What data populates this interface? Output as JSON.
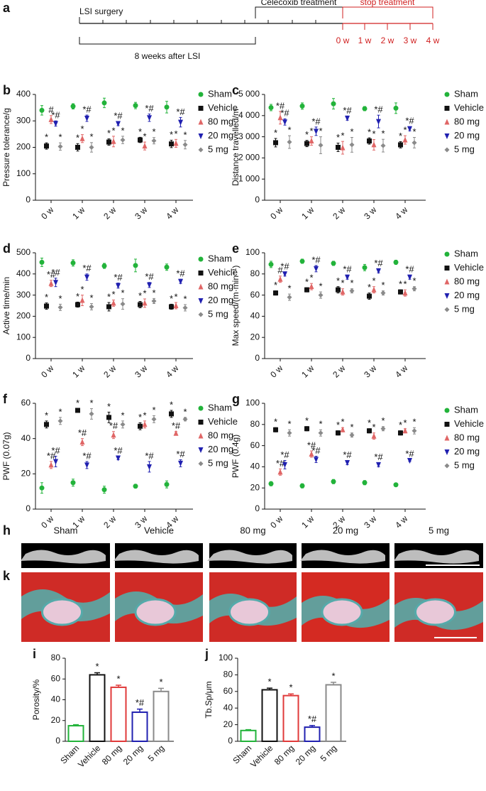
{
  "timeline": {
    "panel": "a",
    "start": "LSI surgery",
    "period": "8 weeks after LSI",
    "treatment": "Celecoxib treatment",
    "stop": "stop treatment",
    "weeks": [
      "0 w",
      "1 w",
      "2 w",
      "3 w",
      "4 w"
    ]
  },
  "images": {
    "panels": [
      "h",
      "k"
    ],
    "labels": [
      "Sham",
      "Vehicle",
      "80 mg",
      "20 mg",
      "5 mg"
    ]
  },
  "chart_data": [
    {
      "type": "errorbar",
      "panel": "b",
      "ylabel": "Pressure tolerance/g",
      "categories": [
        "0 w",
        "1 w",
        "2 w",
        "3 w",
        "4 w"
      ],
      "ylim": [
        0,
        400
      ],
      "yticks": [
        0,
        100,
        200,
        300,
        400
      ],
      "series": [
        {
          "name": "Sham",
          "color": "#22b33a",
          "marker": "circle",
          "values": [
            340,
            355,
            368,
            358,
            352
          ],
          "errors": [
            18,
            10,
            18,
            12,
            22
          ],
          "annotations": [
            null,
            null,
            null,
            null,
            null
          ]
        },
        {
          "name": "Vehicle",
          "color": "#111111",
          "marker": "square",
          "values": [
            205,
            200,
            220,
            228,
            213
          ],
          "errors": [
            12,
            14,
            12,
            10,
            14
          ],
          "annotations": [
            "*",
            "*",
            "*",
            "*",
            "*"
          ]
        },
        {
          "name": "80 mg",
          "color": "#e06666",
          "marker": "triangle-up",
          "values": [
            305,
            233,
            222,
            205,
            215
          ],
          "errors": [
            15,
            15,
            20,
            15,
            15
          ],
          "annotations": [
            "#",
            "*",
            "*",
            "*",
            "*"
          ]
        },
        {
          "name": "20 mg",
          "color": "#2020b0",
          "marker": "triangle-down",
          "values": [
            290,
            310,
            290,
            312,
            295
          ],
          "errors": [
            10,
            12,
            8,
            14,
            18
          ],
          "annotations": [
            "*#",
            "*#",
            "*#",
            "*#",
            "*#"
          ]
        },
        {
          "name": "5 mg",
          "color": "#8a8a8a",
          "marker": "diamond",
          "values": [
            203,
            200,
            228,
            225,
            210
          ],
          "errors": [
            14,
            18,
            14,
            12,
            16
          ],
          "annotations": [
            "*",
            "*",
            "*",
            "*",
            "*"
          ]
        }
      ]
    },
    {
      "type": "errorbar",
      "panel": "c",
      "ylabel": "Distance travelled/m",
      "categories": [
        "0 w",
        "1 w",
        "2 w",
        "3 w",
        "4 w"
      ],
      "ylim": [
        0,
        5000
      ],
      "yticks": [
        0,
        {
          "value": 1000,
          "label": "1 000"
        },
        {
          "value": 2000,
          "label": "2 000"
        },
        {
          "value": 3000,
          "label": "3 000"
        },
        {
          "value": 4000,
          "label": "4 000"
        },
        {
          "value": 5000,
          "label": "5 000"
        }
      ],
      "series": [
        {
          "name": "Sham",
          "color": "#22b33a",
          "marker": "circle",
          "values": [
            4380,
            4450,
            4560,
            4330,
            4350
          ],
          "errors": [
            150,
            150,
            250,
            100,
            250
          ],
          "annotations": [
            null,
            null,
            null,
            null,
            null
          ]
        },
        {
          "name": "Vehicle",
          "color": "#111111",
          "marker": "square",
          "values": [
            2720,
            2680,
            2500,
            2800,
            2620
          ],
          "errors": [
            200,
            150,
            200,
            150,
            150
          ],
          "annotations": [
            "*",
            "*",
            "*",
            "*",
            "*"
          ]
        },
        {
          "name": "80 mg",
          "color": "#e06666",
          "marker": "triangle-up",
          "values": [
            3900,
            2800,
            2480,
            2620,
            2850
          ],
          "errors": [
            300,
            200,
            300,
            250,
            200
          ],
          "annotations": [
            "*#",
            "*",
            "*",
            "*",
            "*"
          ]
        },
        {
          "name": "20 mg",
          "color": "#2020b0",
          "marker": "triangle-down",
          "values": [
            3700,
            3260,
            3880,
            3720,
            3380
          ],
          "errors": [
            150,
            200,
            100,
            300,
            100
          ],
          "annotations": [
            "*#",
            "*#",
            "*#",
            "*#",
            "*#"
          ]
        },
        {
          "name": "5 mg",
          "color": "#8a8a8a",
          "marker": "diamond",
          "values": [
            2750,
            2600,
            2620,
            2580,
            2720
          ],
          "errors": [
            300,
            400,
            350,
            300,
            250
          ],
          "annotations": [
            "*",
            "*",
            "*",
            "*",
            "*"
          ]
        }
      ]
    },
    {
      "type": "errorbar",
      "panel": "d",
      "ylabel": "Active time/min",
      "categories": [
        "0 w",
        "1 w",
        "2 w",
        "3 w",
        "4 w"
      ],
      "ylim": [
        0,
        500
      ],
      "yticks": [
        0,
        100,
        200,
        300,
        400,
        500
      ],
      "series": [
        {
          "name": "Sham",
          "color": "#22b33a",
          "marker": "circle",
          "values": [
            455,
            452,
            438,
            440,
            432
          ],
          "errors": [
            20,
            15,
            12,
            30,
            15
          ],
          "annotations": [
            null,
            null,
            null,
            null,
            null
          ]
        },
        {
          "name": "Vehicle",
          "color": "#111111",
          "marker": "square",
          "values": [
            248,
            255,
            245,
            255,
            245
          ],
          "errors": [
            15,
            12,
            20,
            15,
            12
          ],
          "annotations": [
            "*",
            "*",
            "*",
            "*",
            "*"
          ]
        },
        {
          "name": "80 mg",
          "color": "#e06666",
          "marker": "triangle-up",
          "values": [
            355,
            275,
            262,
            262,
            250
          ],
          "errors": [
            15,
            25,
            15,
            20,
            15
          ],
          "annotations": [
            "*#",
            "*",
            "*",
            "*",
            "*"
          ]
        },
        {
          "name": "20 mg",
          "color": "#2020b0",
          "marker": "triangle-down",
          "values": [
            360,
            385,
            345,
            348,
            365
          ],
          "errors": [
            20,
            15,
            12,
            12,
            10
          ],
          "annotations": [
            "*#",
            "*#",
            "*#",
            "*#",
            "*#"
          ]
        },
        {
          "name": "5 mg",
          "color": "#8a8a8a",
          "marker": "diamond",
          "values": [
            242,
            245,
            258,
            272,
            240
          ],
          "errors": [
            15,
            15,
            25,
            12,
            15
          ],
          "annotations": [
            "*",
            "*",
            "*",
            "*",
            "*"
          ]
        }
      ]
    },
    {
      "type": "errorbar",
      "panel": "e",
      "ylabel": "Max speed/(m·min⁻¹)",
      "categories": [
        "0 w",
        "1 w",
        "2 w",
        "3 w",
        "4 w"
      ],
      "ylim": [
        0,
        100
      ],
      "yticks": [
        0,
        20,
        40,
        60,
        80,
        100
      ],
      "series": [
        {
          "name": "Sham",
          "color": "#22b33a",
          "marker": "circle",
          "values": [
            89,
            92,
            90,
            86,
            91
          ],
          "errors": [
            3,
            2,
            2,
            3,
            2
          ],
          "annotations": [
            null,
            null,
            null,
            null,
            null
          ]
        },
        {
          "name": "Vehicle",
          "color": "#111111",
          "marker": "square",
          "values": [
            62,
            65,
            65,
            59,
            63
          ],
          "errors": [
            2,
            2,
            3,
            3,
            2
          ],
          "annotations": [
            "*",
            "*",
            "*",
            "*",
            "*"
          ]
        },
        {
          "name": "80 mg",
          "color": "#e06666",
          "marker": "triangle-up",
          "values": [
            75,
            68,
            63,
            65,
            62
          ],
          "errors": [
            3,
            3,
            3,
            3,
            3
          ],
          "annotations": [
            "#",
            "*",
            "*",
            "*",
            "*"
          ]
        },
        {
          "name": "20 mg",
          "color": "#2020b0",
          "marker": "triangle-down",
          "values": [
            80,
            85,
            77,
            83,
            77
          ],
          "errors": [
            2,
            3,
            2,
            2,
            2
          ],
          "annotations": [
            "*#",
            "*#",
            "*#",
            "*#",
            "*#"
          ]
        },
        {
          "name": "5 mg",
          "color": "#8a8a8a",
          "marker": "diamond",
          "values": [
            58,
            60,
            64,
            62,
            66
          ],
          "errors": [
            3,
            3,
            2,
            2,
            2
          ],
          "annotations": [
            "*",
            "*",
            "*",
            "*",
            "*"
          ]
        }
      ]
    },
    {
      "type": "errorbar",
      "panel": "f",
      "ylabel": "PWF (0.07g)",
      "categories": [
        "0 w",
        "1 w",
        "2 w",
        "3 w",
        "4 w"
      ],
      "ylim": [
        0,
        60
      ],
      "yticks": [
        0,
        20,
        40,
        60
      ],
      "series": [
        {
          "name": "Sham",
          "color": "#22b33a",
          "marker": "circle",
          "values": [
            12,
            15,
            11,
            13,
            14
          ],
          "errors": [
            3,
            2,
            2,
            1,
            2
          ],
          "annotations": [
            null,
            null,
            null,
            null,
            null
          ]
        },
        {
          "name": "Vehicle",
          "color": "#111111",
          "marker": "square",
          "values": [
            48,
            56,
            52,
            47,
            54
          ],
          "errors": [
            2,
            1,
            3,
            2,
            2
          ],
          "annotations": [
            "*",
            "*",
            "*",
            "*",
            "*"
          ]
        },
        {
          "name": "80 mg",
          "color": "#e06666",
          "marker": "triangle-up",
          "values": [
            25,
            38,
            42,
            48,
            43
          ],
          "errors": [
            2,
            2,
            2,
            2,
            1
          ],
          "annotations": [
            "*#",
            "*#",
            "*#",
            "*",
            "*#"
          ]
        },
        {
          "name": "20 mg",
          "color": "#2020b0",
          "marker": "triangle-down",
          "values": [
            27,
            25,
            29,
            24,
            26
          ],
          "errors": [
            3,
            2,
            1,
            3,
            2
          ],
          "annotations": [
            "*#",
            "*#",
            "*#",
            "*#",
            "*#"
          ]
        },
        {
          "name": "5 mg",
          "color": "#8a8a8a",
          "marker": "diamond",
          "values": [
            50,
            54,
            48,
            51,
            51
          ],
          "errors": [
            2,
            3,
            2,
            2,
            1
          ],
          "annotations": [
            "*",
            "*",
            "*",
            "*",
            "*"
          ]
        }
      ]
    },
    {
      "type": "errorbar",
      "panel": "g",
      "ylabel": "PWF (0.4g)",
      "categories": [
        "0 w",
        "1 w",
        "2 w",
        "3 w",
        "4 w"
      ],
      "ylim": [
        0,
        100
      ],
      "yticks": [
        0,
        20,
        40,
        60,
        80,
        100
      ],
      "series": [
        {
          "name": "Sham",
          "color": "#22b33a",
          "marker": "circle",
          "values": [
            24,
            22,
            26,
            25,
            23
          ],
          "errors": [
            2,
            2,
            2,
            2,
            1
          ],
          "annotations": [
            null,
            null,
            null,
            null,
            null
          ]
        },
        {
          "name": "Vehicle",
          "color": "#111111",
          "marker": "square",
          "values": [
            75,
            76,
            72,
            74,
            72
          ],
          "errors": [
            2,
            2,
            2,
            2,
            2
          ],
          "annotations": [
            "*",
            "*",
            "*",
            "*",
            "*"
          ]
        },
        {
          "name": "80 mg",
          "color": "#e06666",
          "marker": "triangle-up",
          "values": [
            35,
            52,
            75,
            69,
            74
          ],
          "errors": [
            3,
            3,
            2,
            3,
            2
          ],
          "annotations": [
            "*#",
            "*#",
            "*",
            "*",
            "*"
          ]
        },
        {
          "name": "20 mg",
          "color": "#2020b0",
          "marker": "triangle-down",
          "values": [
            42,
            47,
            44,
            42,
            46
          ],
          "errors": [
            4,
            3,
            2,
            2,
            1
          ],
          "annotations": [
            "*#",
            "*#",
            "*#",
            "*#",
            "*#"
          ]
        },
        {
          "name": "5 mg",
          "color": "#8a8a8a",
          "marker": "diamond",
          "values": [
            72,
            72,
            70,
            76,
            74
          ],
          "errors": [
            3,
            3,
            2,
            2,
            3
          ],
          "annotations": [
            "*",
            "*",
            "*",
            "*",
            "*"
          ]
        }
      ]
    },
    {
      "type": "bar",
      "panel": "i",
      "ylabel": "Porosity/%",
      "categories": [
        "Sham",
        "Vehicle",
        "80 mg",
        "20 mg",
        "5 mg"
      ],
      "colors": [
        "#22b33a",
        "#111111",
        "#e03a3a",
        "#2020b0",
        "#8a8a8a"
      ],
      "values": [
        15,
        64,
        52,
        28,
        48
      ],
      "errors": [
        1,
        2,
        2,
        3,
        3
      ],
      "annotations": [
        null,
        "*",
        "*",
        "*#",
        "*"
      ],
      "ylim": [
        0,
        80
      ],
      "yticks": [
        0,
        20,
        40,
        60,
        80
      ]
    },
    {
      "type": "bar",
      "panel": "j",
      "ylabel": "Tb.Sp/μm",
      "categories": [
        "Sham",
        "Vehicle",
        "80 mg",
        "20 mg",
        "5 mg"
      ],
      "colors": [
        "#22b33a",
        "#111111",
        "#e03a3a",
        "#2020b0",
        "#8a8a8a"
      ],
      "values": [
        13,
        62,
        55,
        17,
        68
      ],
      "errors": [
        1,
        2,
        2,
        2,
        3
      ],
      "annotations": [
        null,
        "*",
        "*",
        "*#",
        "*"
      ],
      "ylim": [
        0,
        100
      ],
      "yticks": [
        0,
        20,
        40,
        60,
        80,
        100
      ]
    }
  ]
}
